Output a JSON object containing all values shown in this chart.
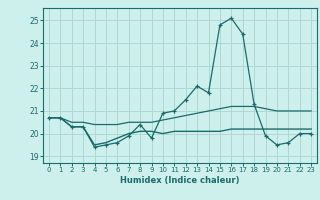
{
  "xlabel": "Humidex (Indice chaleur)",
  "background_color": "#cef0ed",
  "grid_color": "#aed8d4",
  "line_color": "#1a6b6b",
  "xlim": [
    -0.5,
    23.5
  ],
  "ylim": [
    18.7,
    25.55
  ],
  "yticks": [
    19,
    20,
    21,
    22,
    23,
    24,
    25
  ],
  "xticks": [
    0,
    1,
    2,
    3,
    4,
    5,
    6,
    7,
    8,
    9,
    10,
    11,
    12,
    13,
    14,
    15,
    16,
    17,
    18,
    19,
    20,
    21,
    22,
    23
  ],
  "x": [
    0,
    1,
    2,
    3,
    4,
    5,
    6,
    7,
    8,
    9,
    10,
    11,
    12,
    13,
    14,
    15,
    16,
    17,
    18,
    19,
    20,
    21,
    22,
    23
  ],
  "line1_y": [
    20.7,
    20.7,
    20.3,
    20.3,
    19.4,
    19.5,
    19.6,
    19.9,
    20.4,
    19.8,
    20.9,
    21.0,
    21.5,
    22.1,
    21.8,
    24.8,
    25.1,
    24.4,
    21.3,
    19.9,
    19.5,
    19.6,
    20.0,
    20.0
  ],
  "line2_y": [
    20.7,
    20.7,
    20.3,
    20.3,
    19.5,
    19.6,
    19.8,
    20.0,
    20.1,
    20.1,
    20.0,
    20.1,
    20.1,
    20.1,
    20.1,
    20.1,
    20.2,
    20.2,
    20.2,
    20.2,
    20.2,
    20.2,
    20.2,
    20.2
  ],
  "line3_y": [
    20.7,
    20.7,
    20.5,
    20.5,
    20.4,
    20.4,
    20.4,
    20.5,
    20.5,
    20.5,
    20.6,
    20.7,
    20.8,
    20.9,
    21.0,
    21.1,
    21.2,
    21.2,
    21.2,
    21.1,
    21.0,
    21.0,
    21.0,
    21.0
  ],
  "figsize": [
    3.2,
    2.0
  ],
  "dpi": 100
}
